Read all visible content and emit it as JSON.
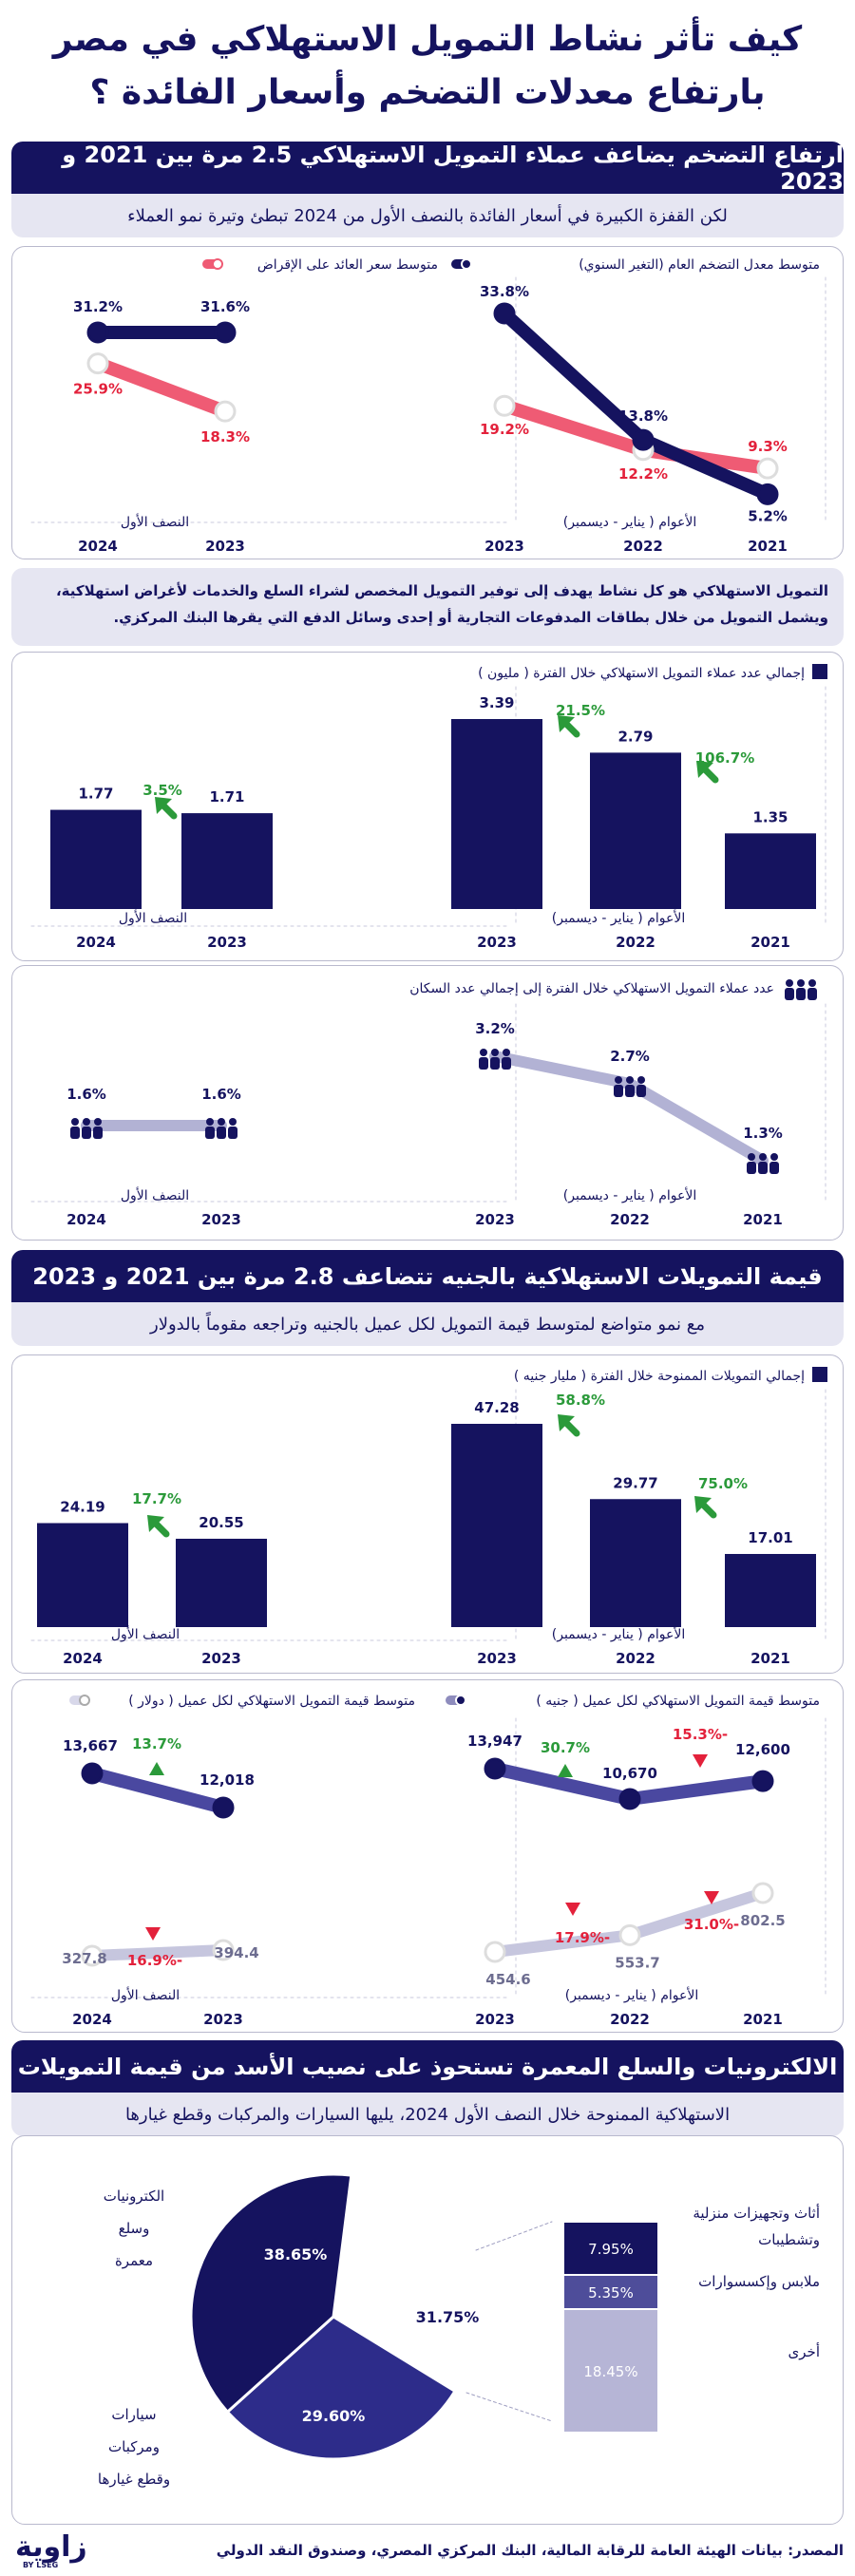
{
  "title": "كيف تأثر نشاط التمويل الاستهلاكي في مصر بارتفاع معدلات التضخم وأسعار الفائدة ؟",
  "section1": {
    "banner": "ارتفاع التضخم يضاعف عملاء التمويل الاستهلاكي 2.5 مرة بين 2021 و 2023",
    "sub": "لكن القفزة الكبيرة في أسعار الفائدة بالنصف الأول من 2024 تبطئ وتيرة نمو العملاء"
  },
  "note": "التمويل الاستهلاكي هو كل نشاط يهدف إلى توفير التمويل المخصص لشراء السلع والخدمات لأغراض استهلاكية، ويشمل التمويل من خلال بطاقات المدفوعات التجارية أو إحدى وسائل الدفع التي يقرها البنك المركزي.",
  "section2": {
    "banner": "قيمة التمويلات الاستهلاكية بالجنيه تتضاعف 2.8 مرة بين 2021 و 2023",
    "sub": "مع نمو متواضع لمتوسط قيمة التمويل لكل عميل بالجنيه وتراجعه مقوماً بالدولار"
  },
  "section3": {
    "banner": "الالكترونيات والسلع المعمرة تستحوذ على نصيب الأسد من قيمة التمويلات",
    "sub": "الاستهلاكية الممنوحة خلال النصف الأول 2024، يليها السيارات والمركبات وقطع غيارها"
  },
  "axis": {
    "years_label": "الأعوام ( يناير - ديسمبر)",
    "h1_label": "النصف الأول",
    "years": [
      "2023",
      "2022",
      "2021"
    ],
    "h1_years": [
      "2024",
      "2023"
    ]
  },
  "colors": {
    "navy": "#15135f",
    "lavender": "#8e8cbd",
    "pink": "#ef5b74",
    "green": "#2b9a3a",
    "red": "#e3213b",
    "light": "#b2b2d4"
  },
  "chart_data": [
    {
      "id": "inflation_vs_rates",
      "type": "line",
      "legend": [
        "متوسط معدل التضخم العام (التغير السنوي)",
        "متوسط سعر العائد على الإقراض"
      ],
      "years": {
        "categories": [
          "2023",
          "2022",
          "2021"
        ],
        "series": [
          {
            "name": "متوسط معدل التضخم العام (التغير السنوي)",
            "values": [
              33.8,
              13.8,
              5.2
            ],
            "labels": [
              "33.8%",
              "13.8%",
              "5.2%"
            ]
          },
          {
            "name": "متوسط سعر العائد على الإقراض",
            "values": [
              19.2,
              12.2,
              9.3
            ],
            "labels": [
              "19.2%",
              "12.2%",
              "9.3%"
            ]
          }
        ]
      },
      "h1": {
        "categories": [
          "2024",
          "2023"
        ],
        "series": [
          {
            "name": "متوسط معدل التضخم العام (التغير السنوي)",
            "values": [
              31.2,
              31.6
            ],
            "labels": [
              "31.2%",
              "31.6%"
            ]
          },
          {
            "name": "متوسط سعر العائد على الإقراض",
            "values": [
              25.9,
              18.3
            ],
            "labels": [
              "25.9%",
              "18.3%"
            ]
          }
        ]
      }
    },
    {
      "id": "customers",
      "type": "bar",
      "legend": "إجمالي عدد عملاء التمويل الاستهلاكي خلال الفترة ( مليون )",
      "years": {
        "categories": [
          "2023",
          "2022",
          "2021"
        ],
        "values": [
          3.39,
          2.79,
          1.35
        ],
        "labels": [
          "3.39",
          "2.79",
          "1.35"
        ],
        "growth": [
          "21.5%",
          "106.7%"
        ]
      },
      "h1": {
        "categories": [
          "2024",
          "2023"
        ],
        "values": [
          1.77,
          1.71
        ],
        "labels": [
          "1.77",
          "1.71"
        ],
        "growth": [
          "3.5%"
        ]
      }
    },
    {
      "id": "customers_share",
      "type": "line",
      "legend": "عدد عملاء التمويل الاستهلاكي خلال الفترة إلى إجمالي عدد السكان",
      "years": {
        "categories": [
          "2023",
          "2022",
          "2021"
        ],
        "values": [
          3.2,
          2.7,
          1.3
        ],
        "labels": [
          "3.2%",
          "2.7%",
          "1.3%"
        ]
      },
      "h1": {
        "categories": [
          "2024",
          "2023"
        ],
        "values": [
          1.6,
          1.6
        ],
        "labels": [
          "1.6%",
          "1.6%"
        ]
      }
    },
    {
      "id": "financing_value",
      "type": "bar",
      "legend": "إجمالي التمويلات الممنوحة خلال الفترة ( مليار جنيه )",
      "years": {
        "categories": [
          "2023",
          "2022",
          "2021"
        ],
        "values": [
          47.28,
          29.77,
          17.01
        ],
        "labels": [
          "47.28",
          "29.77",
          "17.01"
        ],
        "growth": [
          "58.8%",
          "75.0%"
        ]
      },
      "h1": {
        "categories": [
          "2024",
          "2023"
        ],
        "values": [
          24.19,
          20.55
        ],
        "labels": [
          "24.19",
          "20.55"
        ],
        "growth": [
          "17.7%"
        ]
      }
    },
    {
      "id": "avg_per_customer",
      "type": "line",
      "legend": [
        "متوسط قيمة التمويل الاستهلاكي لكل عميل ( جنيه )",
        "متوسط قيمة التمويل الاستهلاكي لكل عميل ( دولار )"
      ],
      "years": {
        "categories": [
          "2023",
          "2022",
          "2021"
        ],
        "series": [
          {
            "name": "متوسط قيمة التمويل الاستهلاكي لكل عميل ( جنيه )",
            "values": [
              13947,
              10670,
              12600
            ],
            "labels": [
              "13,947",
              "10,670",
              "12,600"
            ],
            "changes": [
              "30.7%",
              "-15.3%"
            ]
          },
          {
            "name": "متوسط قيمة التمويل الاستهلاكي لكل عميل ( دولار )",
            "values": [
              454.6,
              553.7,
              802.5
            ],
            "labels": [
              "454.6",
              "553.7",
              "802.5"
            ],
            "changes": [
              "-17.9%",
              "-31.0%"
            ]
          }
        ]
      },
      "h1": {
        "categories": [
          "2024",
          "2023"
        ],
        "series": [
          {
            "name": "متوسط قيمة التمويل الاستهلاكي لكل عميل ( جنيه )",
            "values": [
              13667,
              12018
            ],
            "labels": [
              "13,667",
              "12,018"
            ],
            "changes": [
              "13.7%"
            ]
          },
          {
            "name": "متوسط قيمة التمويل الاستهلاكي لكل عميل ( دولار )",
            "values": [
              327.8,
              394.4
            ],
            "labels": [
              "327.8",
              "394.4"
            ],
            "changes": [
              "-16.9%"
            ]
          }
        ]
      }
    },
    {
      "id": "breakdown_h1_2024",
      "type": "pie",
      "slices": [
        {
          "label": "الكترونيات وسلع معمرة",
          "lines": [
            "الكترونيات",
            "وسلع",
            "معمرة"
          ],
          "value": 38.65,
          "text": "38.65%"
        },
        {
          "label": "سيارات ومركبات وقطع غيارها",
          "lines": [
            "سيارات",
            "ومركبات",
            "وقطع غيارها"
          ],
          "value": 29.6,
          "text": "29.60%"
        },
        {
          "label": "أخرى",
          "value": 31.75,
          "text": "31.75%"
        }
      ],
      "others_breakdown": [
        {
          "label": "أثاث وتجهيزات منزلية وتشطيبات",
          "lines": [
            "أثاث وتجهيزات منزلية",
            "وتشطيبات"
          ],
          "value": 7.95,
          "text": "7.95%"
        },
        {
          "label": "ملابس وإكسسوارات",
          "value": 5.35,
          "text": "5.35%"
        },
        {
          "label": "أخرى",
          "value": 18.45,
          "text": "18.45%"
        }
      ]
    }
  ],
  "footer": {
    "source": "المصدر: بيانات الهيئة العامة للرقابة المالية، البنك المركزي المصري، وصندوق النقد الدولي",
    "logo": "زاوية",
    "logo_sub": "BY LSEG"
  }
}
